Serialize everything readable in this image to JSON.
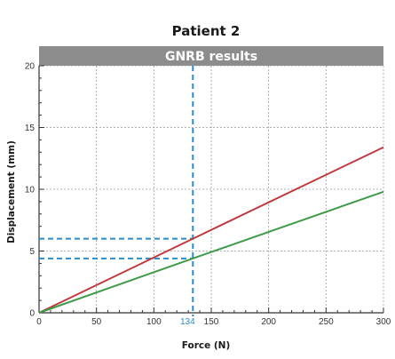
{
  "chart_data": {
    "type": "line",
    "title": "Patient 2",
    "subtitle": "GNRB results",
    "xlabel": "Force (N)",
    "ylabel": "Displacement (mm)",
    "xlim": [
      0,
      300
    ],
    "ylim": [
      0,
      20
    ],
    "x_ticks": [
      0,
      50,
      100,
      150,
      200,
      250,
      300
    ],
    "y_ticks": [
      0,
      5,
      10,
      15,
      20
    ],
    "grid": true,
    "legend": "none",
    "series": [
      {
        "color": "#c0393f",
        "x": [
          0,
          134,
          300
        ],
        "y": [
          0,
          6.0,
          13.4
        ]
      },
      {
        "color": "#3f9a4a",
        "x": [
          0,
          134,
          300
        ],
        "y": [
          0,
          4.4,
          9.8
        ]
      }
    ],
    "annotations": {
      "vline": {
        "x": 134,
        "label": "134",
        "color": "#2a8cc8"
      },
      "hlines": [
        {
          "y": 6.0
        },
        {
          "y": 4.4
        }
      ]
    },
    "colors": {
      "banner": "#8c8c8c",
      "grid": "#9a9a9a",
      "axis": "#333333"
    }
  }
}
